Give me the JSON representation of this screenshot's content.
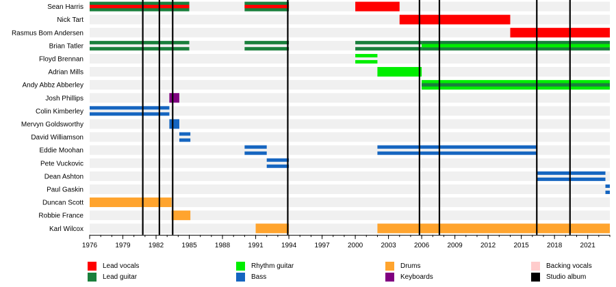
{
  "chart_data": {
    "type": "timeline",
    "title": "",
    "xlabel": "",
    "ylabel": "",
    "xlim": [
      1976,
      2023
    ],
    "ticks": [
      1976,
      1979,
      1982,
      1985,
      1988,
      1991,
      1994,
      1997,
      2000,
      2003,
      2006,
      2009,
      2012,
      2015,
      2018,
      2021
    ],
    "members": [
      "Sean Harris",
      "Nick Tart",
      "Rasmus Bom Andersen",
      "Brian Tatler",
      "Floyd Brennan",
      "Adrian Mills",
      "Andy Abbz Abberley",
      "Josh Phillips",
      "Colin Kimberley",
      "Mervyn Goldsworthy",
      "David Williamson",
      "Eddie Moohan",
      "Pete Vuckovic",
      "Dean Ashton",
      "Paul Gaskin",
      "Duncan Scott",
      "Robbie France",
      "Karl Wilcox"
    ],
    "roles": [
      {
        "key": "lead_vocals",
        "label": "Lead vocals",
        "color": "#ff0000"
      },
      {
        "key": "lead_guitar",
        "label": "Lead guitar",
        "color": "#1a7f3c"
      },
      {
        "key": "rhythm_guitar",
        "label": "Rhythm guitar",
        "color": "#00ee00"
      },
      {
        "key": "bass",
        "label": "Bass",
        "color": "#1565c0"
      },
      {
        "key": "drums",
        "label": "Drums",
        "color": "#ffa42e"
      },
      {
        "key": "keyboards",
        "label": "Keyboards",
        "color": "#800080"
      },
      {
        "key": "backing_vocals",
        "label": "Backing vocals",
        "color": "#ffcccc"
      },
      {
        "key": "studio_album",
        "label": "Studio album",
        "color": "#000000"
      }
    ],
    "bars": [
      {
        "member": "Sean Harris",
        "start": 1976,
        "end": 1985,
        "roles": [
          "lead_guitar",
          "lead_vocals"
        ],
        "style": "center"
      },
      {
        "member": "Sean Harris",
        "start": 1990,
        "end": 1994,
        "roles": [
          "lead_guitar",
          "lead_vocals"
        ],
        "style": "center"
      },
      {
        "member": "Sean Harris",
        "start": 2000,
        "end": 2004,
        "roles": [
          "lead_vocals"
        ],
        "style": "full"
      },
      {
        "member": "Nick Tart",
        "start": 2004,
        "end": 2014,
        "roles": [
          "lead_vocals"
        ],
        "style": "full"
      },
      {
        "member": "Rasmus Bom Andersen",
        "start": 2014,
        "end": 2023,
        "roles": [
          "lead_vocals"
        ],
        "style": "full"
      },
      {
        "member": "Brian Tatler",
        "start": 1976,
        "end": 1985,
        "roles": [
          "lead_guitar"
        ],
        "style": "split"
      },
      {
        "member": "Brian Tatler",
        "start": 1990,
        "end": 1994,
        "roles": [
          "lead_guitar"
        ],
        "style": "split"
      },
      {
        "member": "Brian Tatler",
        "start": 2000,
        "end": 2006,
        "roles": [
          "lead_guitar"
        ],
        "style": "split"
      },
      {
        "member": "Brian Tatler",
        "start": 2006,
        "end": 2023,
        "roles": [
          "lead_guitar",
          "rhythm_guitar"
        ],
        "style": "center"
      },
      {
        "member": "Floyd Brennan",
        "start": 2000,
        "end": 2002,
        "roles": [
          "rhythm_guitar"
        ],
        "style": "split"
      },
      {
        "member": "Adrian Mills",
        "start": 2002,
        "end": 2006,
        "roles": [
          "rhythm_guitar"
        ],
        "style": "full"
      },
      {
        "member": "Andy Abbz Abberley",
        "start": 2006,
        "end": 2023,
        "roles": [
          "rhythm_guitar",
          "lead_guitar"
        ],
        "style": "center"
      },
      {
        "member": "Josh Phillips",
        "start": 1983.2,
        "end": 1984.1,
        "roles": [
          "keyboards"
        ],
        "style": "full"
      },
      {
        "member": "Colin Kimberley",
        "start": 1976,
        "end": 1983.2,
        "roles": [
          "bass"
        ],
        "style": "split"
      },
      {
        "member": "Mervyn Goldsworthy",
        "start": 1983.2,
        "end": 1984.1,
        "roles": [
          "bass"
        ],
        "style": "full"
      },
      {
        "member": "David Williamson",
        "start": 1984.1,
        "end": 1985.1,
        "roles": [
          "bass"
        ],
        "style": "split"
      },
      {
        "member": "Eddie Moohan",
        "start": 1990,
        "end": 1992,
        "roles": [
          "bass"
        ],
        "style": "split"
      },
      {
        "member": "Eddie Moohan",
        "start": 2002,
        "end": 2016.4,
        "roles": [
          "bass"
        ],
        "style": "split"
      },
      {
        "member": "Pete Vuckovic",
        "start": 1992,
        "end": 1994,
        "roles": [
          "bass"
        ],
        "style": "split"
      },
      {
        "member": "Dean Ashton",
        "start": 2016.4,
        "end": 2022.6,
        "roles": [
          "bass"
        ],
        "style": "split"
      },
      {
        "member": "Paul Gaskin",
        "start": 2022.6,
        "end": 2023,
        "roles": [
          "bass"
        ],
        "style": "split"
      },
      {
        "member": "Duncan Scott",
        "start": 1976,
        "end": 1983.4,
        "roles": [
          "drums"
        ],
        "style": "full"
      },
      {
        "member": "Robbie France",
        "start": 1983.4,
        "end": 1985.1,
        "roles": [
          "drums"
        ],
        "style": "full"
      },
      {
        "member": "Karl Wilcox",
        "start": 1991,
        "end": 1994,
        "roles": [
          "drums"
        ],
        "style": "full"
      },
      {
        "member": "Karl Wilcox",
        "start": 2002,
        "end": 2023,
        "roles": [
          "drums"
        ],
        "style": "full"
      }
    ],
    "albums": [
      1980.8,
      1982.3,
      1983.5,
      1993.9,
      2005.8,
      2007.6,
      2016.4,
      2019.4
    ]
  }
}
